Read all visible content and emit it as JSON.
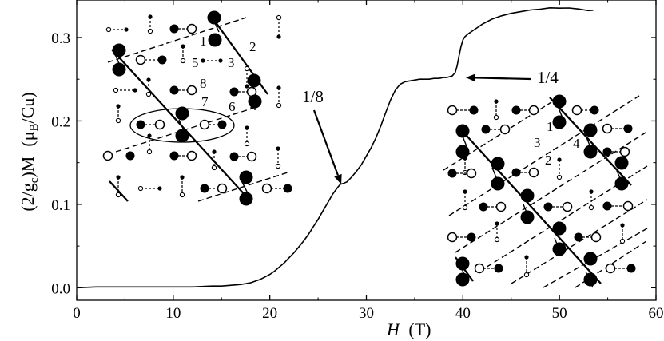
{
  "chart_data": {
    "type": "line",
    "title": "",
    "xlim": [
      0,
      60
    ],
    "ylim": [
      -0.015,
      0.345
    ],
    "x_ticks": [
      0,
      10,
      20,
      30,
      40,
      50,
      60
    ],
    "y_ticks": [
      0.0,
      0.1,
      0.2,
      0.3
    ],
    "x_tick_labels": [
      "0",
      "10",
      "20",
      "30",
      "40",
      "50",
      "60"
    ],
    "y_tick_labels": [
      "0.0",
      "0.1",
      "0.2",
      "0.3"
    ],
    "xlabel": {
      "var": "H",
      "unit": "(T)"
    },
    "ylabel": {
      "prefix": "(2/g",
      "sub1": "c",
      "mid": ")M",
      "unit_open": "(μ",
      "sub2": "B",
      "unit_close": "/Cu)"
    },
    "grid": false,
    "series": [
      {
        "x": [
          0,
          2,
          5,
          8,
          10,
          12,
          14,
          15,
          16,
          17,
          17.5,
          18,
          18.5,
          19,
          19.5,
          20,
          20.5,
          21,
          21.5,
          22,
          22.5,
          23,
          23.5,
          24,
          24.5,
          25,
          25.5,
          26,
          26.5,
          27,
          27.3,
          27.6,
          28,
          28.5,
          29,
          29.5,
          30,
          30.5,
          31,
          31.5,
          32,
          32.5,
          33,
          33.5,
          34,
          34.5,
          35,
          35.5,
          36,
          36.5,
          37,
          37.5,
          38,
          38.3,
          38.6,
          38.9,
          39.2,
          39.4,
          39.6,
          39.8,
          40,
          40.2,
          40.5,
          41,
          41.5,
          42,
          43,
          44,
          45,
          46,
          47,
          48,
          49,
          50,
          51,
          52,
          53,
          53.5
        ],
        "y": [
          0.0,
          0.001,
          0.001,
          0.001,
          0.001,
          0.001,
          0.002,
          0.002,
          0.003,
          0.004,
          0.005,
          0.006,
          0.008,
          0.01,
          0.013,
          0.016,
          0.02,
          0.025,
          0.03,
          0.036,
          0.042,
          0.049,
          0.056,
          0.064,
          0.073,
          0.082,
          0.092,
          0.102,
          0.112,
          0.12,
          0.124,
          0.125,
          0.127,
          0.133,
          0.14,
          0.148,
          0.158,
          0.168,
          0.18,
          0.194,
          0.21,
          0.225,
          0.237,
          0.244,
          0.247,
          0.248,
          0.249,
          0.25,
          0.25,
          0.25,
          0.251,
          0.251,
          0.252,
          0.252,
          0.253,
          0.254,
          0.258,
          0.266,
          0.278,
          0.289,
          0.297,
          0.301,
          0.304,
          0.308,
          0.312,
          0.316,
          0.322,
          0.326,
          0.329,
          0.331,
          0.333,
          0.334,
          0.335,
          0.336,
          0.335,
          0.334,
          0.333,
          0.332
        ]
      }
    ],
    "annotations": [
      {
        "text": "1/8",
        "points_to": {
          "x": 27.4,
          "y": 0.124
        }
      },
      {
        "text": "1/4",
        "points_to": {
          "x": 39.8,
          "y": 0.252
        }
      }
    ]
  },
  "insets": {
    "left": {
      "site_labels": [
        "1",
        "2",
        "5",
        "3",
        "8",
        "7",
        "6",
        "4"
      ]
    },
    "right": {
      "site_labels": [
        "1",
        "3",
        "4",
        "2"
      ]
    }
  }
}
